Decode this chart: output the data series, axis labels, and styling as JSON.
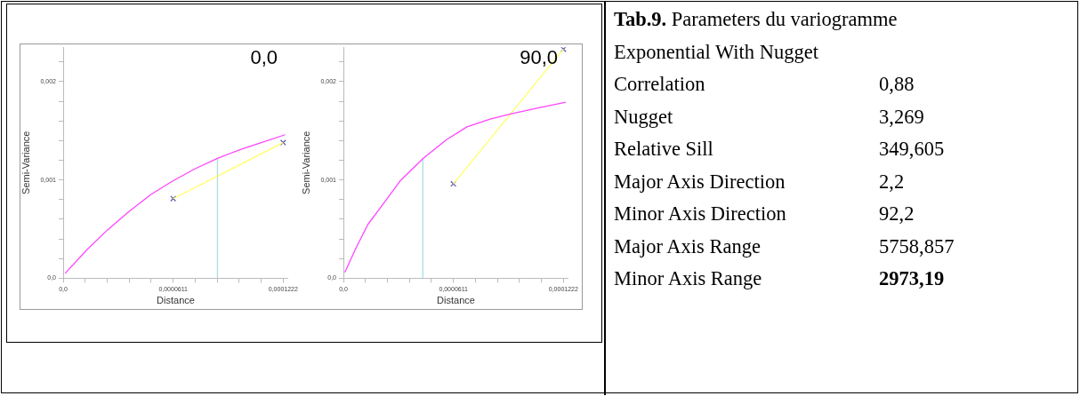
{
  "chart_data": [
    {
      "type": "line",
      "title": "0,0",
      "xlabel": "Distance",
      "ylabel": "Semi-Variance",
      "xlim": [
        0,
        0.000125
      ],
      "ylim": [
        0,
        0.00235
      ],
      "xticks": [
        {
          "value": 0,
          "label": "0,0"
        },
        {
          "value": 1.222e-05,
          "label": null
        },
        {
          "value": 2.444e-05,
          "label": null
        },
        {
          "value": 3.666e-05,
          "label": null
        },
        {
          "value": 4.888e-05,
          "label": null
        },
        {
          "value": 6.11e-05,
          "label": "0,0000611"
        },
        {
          "value": 7.332e-05,
          "label": null
        },
        {
          "value": 8.554e-05,
          "label": null
        },
        {
          "value": 9.776e-05,
          "label": null
        },
        {
          "value": 0.00010998,
          "label": null
        },
        {
          "value": 0.0001222,
          "label": "0,0001222"
        }
      ],
      "yticks": [
        {
          "value": 0,
          "label": "0,0"
        },
        {
          "value": 0.0002,
          "label": null
        },
        {
          "value": 0.0004,
          "label": null
        },
        {
          "value": 0.0006,
          "label": null
        },
        {
          "value": 0.0008,
          "label": null
        },
        {
          "value": 0.001,
          "label": "0,001"
        },
        {
          "value": 0.0012,
          "label": null
        },
        {
          "value": 0.0014,
          "label": null
        },
        {
          "value": 0.0016,
          "label": null
        },
        {
          "value": 0.0018,
          "label": null
        },
        {
          "value": 0.002,
          "label": "0,002"
        },
        {
          "value": 0.0022,
          "label": null
        }
      ],
      "series": [
        {
          "type": "line",
          "color": "#ff44ff",
          "marker": "none",
          "x": [
            1.1e-06,
            1.32e-05,
            2.45e-05,
            3.67e-05,
            4.86e-05,
            6.09e-05,
            7.28e-05,
            8.57e-05,
            9.85e-05,
            0.00011,
            0.0001233
          ],
          "values": [
            5e-05,
            0.00029,
            0.00049,
            0.00068,
            0.00085,
            0.00099,
            0.00111,
            0.00122,
            0.00131,
            0.00138,
            0.00146
          ]
        },
        {
          "type": "line",
          "color": "#ffff66",
          "marker": "none",
          "x": [
            6.11e-05,
            0.0001222
          ],
          "values": [
            0.00081,
            0.00138
          ]
        },
        {
          "type": "line",
          "color": "#aadddd",
          "marker": "none",
          "x": [
            8.57e-05,
            8.57e-05
          ],
          "values": [
            0,
            0.00122
          ]
        },
        {
          "type": "scatter",
          "color": "#5555aa",
          "marker": "cross",
          "x": [
            6.11e-05,
            0.0001222
          ],
          "values": [
            0.00081,
            0.00138
          ]
        }
      ]
    },
    {
      "type": "line",
      "title": "90,0",
      "xlabel": "Distance",
      "ylabel": "Semi-Variance",
      "xlim": [
        0,
        0.000125
      ],
      "ylim": [
        0,
        0.00235
      ],
      "xticks": [
        {
          "value": 0,
          "label": "0,0"
        },
        {
          "value": 1.222e-05,
          "label": null
        },
        {
          "value": 2.444e-05,
          "label": null
        },
        {
          "value": 3.666e-05,
          "label": null
        },
        {
          "value": 4.888e-05,
          "label": null
        },
        {
          "value": 6.11e-05,
          "label": "0,0000611"
        },
        {
          "value": 7.332e-05,
          "label": null
        },
        {
          "value": 8.554e-05,
          "label": null
        },
        {
          "value": 9.776e-05,
          "label": null
        },
        {
          "value": 0.00010998,
          "label": null
        },
        {
          "value": 0.0001222,
          "label": "0,0001222"
        }
      ],
      "yticks": [
        {
          "value": 0,
          "label": "0,0"
        },
        {
          "value": 0.0002,
          "label": null
        },
        {
          "value": 0.0004,
          "label": null
        },
        {
          "value": 0.0006,
          "label": null
        },
        {
          "value": 0.0008,
          "label": null
        },
        {
          "value": 0.001,
          "label": "0,001"
        },
        {
          "value": 0.0012,
          "label": null
        },
        {
          "value": 0.0014,
          "label": null
        },
        {
          "value": 0.0016,
          "label": null
        },
        {
          "value": 0.0018,
          "label": null
        },
        {
          "value": 0.002,
          "label": "0,002"
        },
        {
          "value": 0.0022,
          "label": null
        }
      ],
      "series": [
        {
          "type": "line",
          "color": "#ff44ff",
          "marker": "none",
          "x": [
            8e-07,
            7.3e-06,
            1.37e-05,
            2.02e-05,
            3.15e-05,
            4.44e-05,
            5.73e-05,
            6.86e-05,
            8.15e-05,
            9.28e-05,
            0.0001074,
            0.0001235
          ],
          "values": [
            6e-05,
            0.00032,
            0.00055,
            0.00071,
            0.00099,
            0.00122,
            0.00141,
            0.00154,
            0.00162,
            0.00167,
            0.00173,
            0.00179
          ]
        },
        {
          "type": "line",
          "color": "#ffff66",
          "marker": "none",
          "x": [
            6.11e-05,
            0.0001222
          ],
          "values": [
            0.00096,
            0.00233
          ]
        },
        {
          "type": "line",
          "color": "#aadddd",
          "marker": "none",
          "x": [
            4.41e-05,
            4.41e-05
          ],
          "values": [
            0,
            0.00122
          ]
        },
        {
          "type": "scatter",
          "color": "#5555aa",
          "marker": "cross",
          "x": [
            6.11e-05,
            0.0001222
          ],
          "values": [
            0.00096,
            0.00233
          ]
        }
      ]
    },
    {
      "type": "other",
      "title": "Tab.9.",
      "subtitle": "Parameters du variogramme",
      "annotations": [
        "Exponential With Nugget"
      ],
      "categories": [
        "Correlation",
        "Nugget",
        "Relative Sill",
        "Major Axis Direction",
        "Minor Axis Direction",
        "Major Axis Range",
        "Minor Axis Range"
      ],
      "value_labels": [
        "0,88",
        "3,269",
        "349,605",
        "2,2",
        "92,2",
        "5758,857",
        "2973,19"
      ]
    }
  ]
}
